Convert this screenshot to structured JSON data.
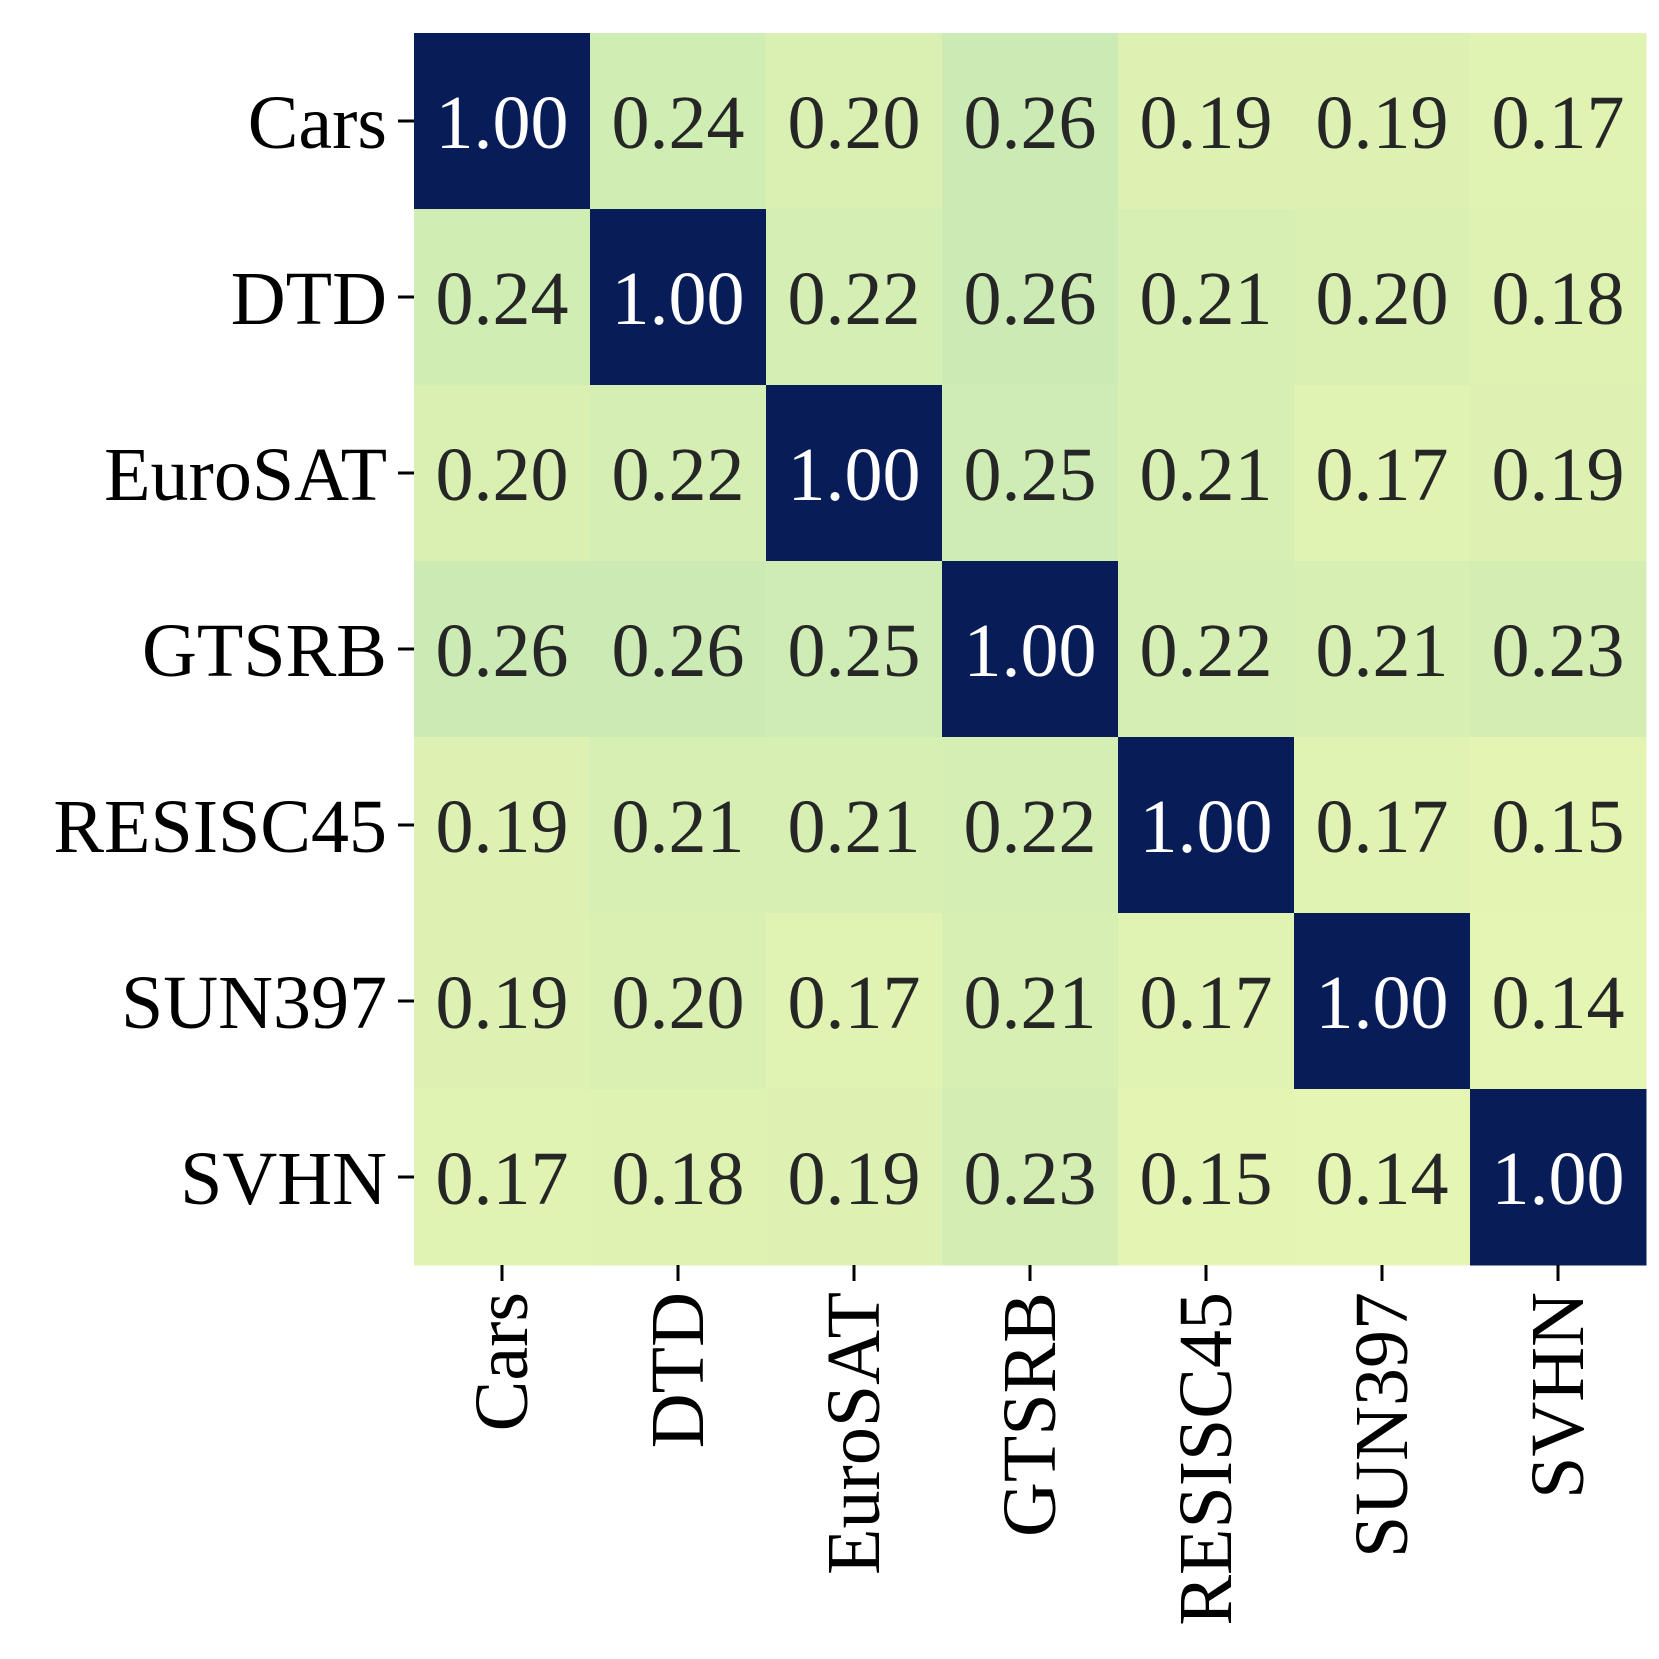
{
  "chart_data": {
    "type": "heatmap",
    "title": "",
    "xlabel": "",
    "ylabel": "",
    "rows": [
      "Cars",
      "DTD",
      "EuroSAT",
      "GTSRB",
      "RESISC45",
      "SUN397",
      "SVHN"
    ],
    "columns": [
      "Cars",
      "DTD",
      "EuroSAT",
      "GTSRB",
      "RESISC45",
      "SUN397",
      "SVHN"
    ],
    "values": [
      [
        1.0,
        0.24,
        0.2,
        0.26,
        0.19,
        0.19,
        0.17
      ],
      [
        0.24,
        1.0,
        0.22,
        0.26,
        0.21,
        0.2,
        0.18
      ],
      [
        0.2,
        0.22,
        1.0,
        0.25,
        0.21,
        0.17,
        0.19
      ],
      [
        0.26,
        0.26,
        0.25,
        1.0,
        0.22,
        0.21,
        0.23
      ],
      [
        0.19,
        0.21,
        0.21,
        0.22,
        1.0,
        0.17,
        0.15
      ],
      [
        0.19,
        0.2,
        0.17,
        0.21,
        0.17,
        1.0,
        0.14
      ],
      [
        0.17,
        0.18,
        0.19,
        0.23,
        0.15,
        0.14,
        1.0
      ]
    ],
    "value_format": "0.00",
    "colormap": "YlGnBu",
    "colorbar": false,
    "colors": {
      "low": "#edf7b5",
      "high": "#081d58",
      "text_dark": "#262626",
      "text_light": "#ffffff"
    }
  }
}
